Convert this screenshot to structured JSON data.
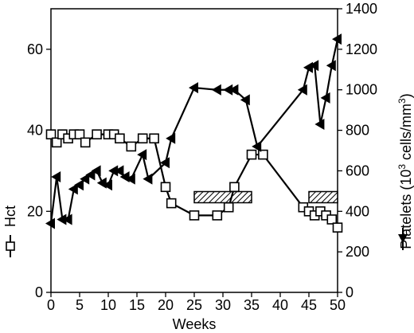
{
  "chart_data": {
    "type": "line",
    "xlabel": "Weeks",
    "ylabel_left": "Hct",
    "ylabel_right_parts": [
      "Platelets (10",
      "3",
      " cells/mm",
      "3",
      ")"
    ],
    "xlim": [
      0,
      50
    ],
    "ylim_left": [
      0,
      70
    ],
    "ylim_right": [
      0,
      1400
    ],
    "x_ticks": [
      0,
      5,
      10,
      15,
      20,
      25,
      30,
      35,
      40,
      45,
      50
    ],
    "y_left_ticks": [
      0,
      20,
      40,
      60
    ],
    "y_right_ticks": [
      0,
      200,
      400,
      600,
      800,
      1000,
      1200,
      1400
    ],
    "grid": false,
    "series": [
      {
        "axis": "left",
        "marker": "open-square",
        "x": [
          0,
          1,
          2,
          3,
          4,
          5,
          6,
          8,
          10,
          11,
          12,
          14,
          16,
          18,
          20,
          21,
          25,
          29,
          31,
          32,
          35,
          37,
          44,
          45,
          46,
          47,
          48,
          49,
          50
        ],
        "y": [
          39,
          37,
          39,
          38,
          39,
          39,
          37,
          39,
          39,
          39,
          38,
          36,
          38,
          38,
          26,
          22,
          19,
          19,
          21,
          26,
          34,
          34,
          21,
          20,
          19,
          20,
          19,
          18,
          16
        ]
      },
      {
        "axis": "right",
        "marker": "filled-triangle",
        "x": [
          0,
          1,
          2,
          3,
          4,
          5,
          6,
          7,
          8,
          9,
          10,
          11,
          12,
          13,
          14,
          16,
          17,
          20,
          21,
          25,
          29,
          31,
          32,
          34,
          36,
          44,
          45,
          46,
          47,
          48,
          49,
          50
        ],
        "y": [
          340,
          570,
          360,
          360,
          510,
          530,
          560,
          580,
          600,
          540,
          530,
          600,
          600,
          570,
          560,
          680,
          560,
          640,
          760,
          1010,
          1000,
          1000,
          1000,
          950,
          720,
          1000,
          1110,
          1120,
          830,
          960,
          1120,
          1250
        ]
      }
    ],
    "annotations": [
      {
        "type": "hatched-bar",
        "x_range": [
          25,
          35
        ],
        "y_center_right": 470
      },
      {
        "type": "hatched-bar",
        "x_range": [
          45,
          50
        ],
        "y_center_right": 470
      }
    ]
  }
}
